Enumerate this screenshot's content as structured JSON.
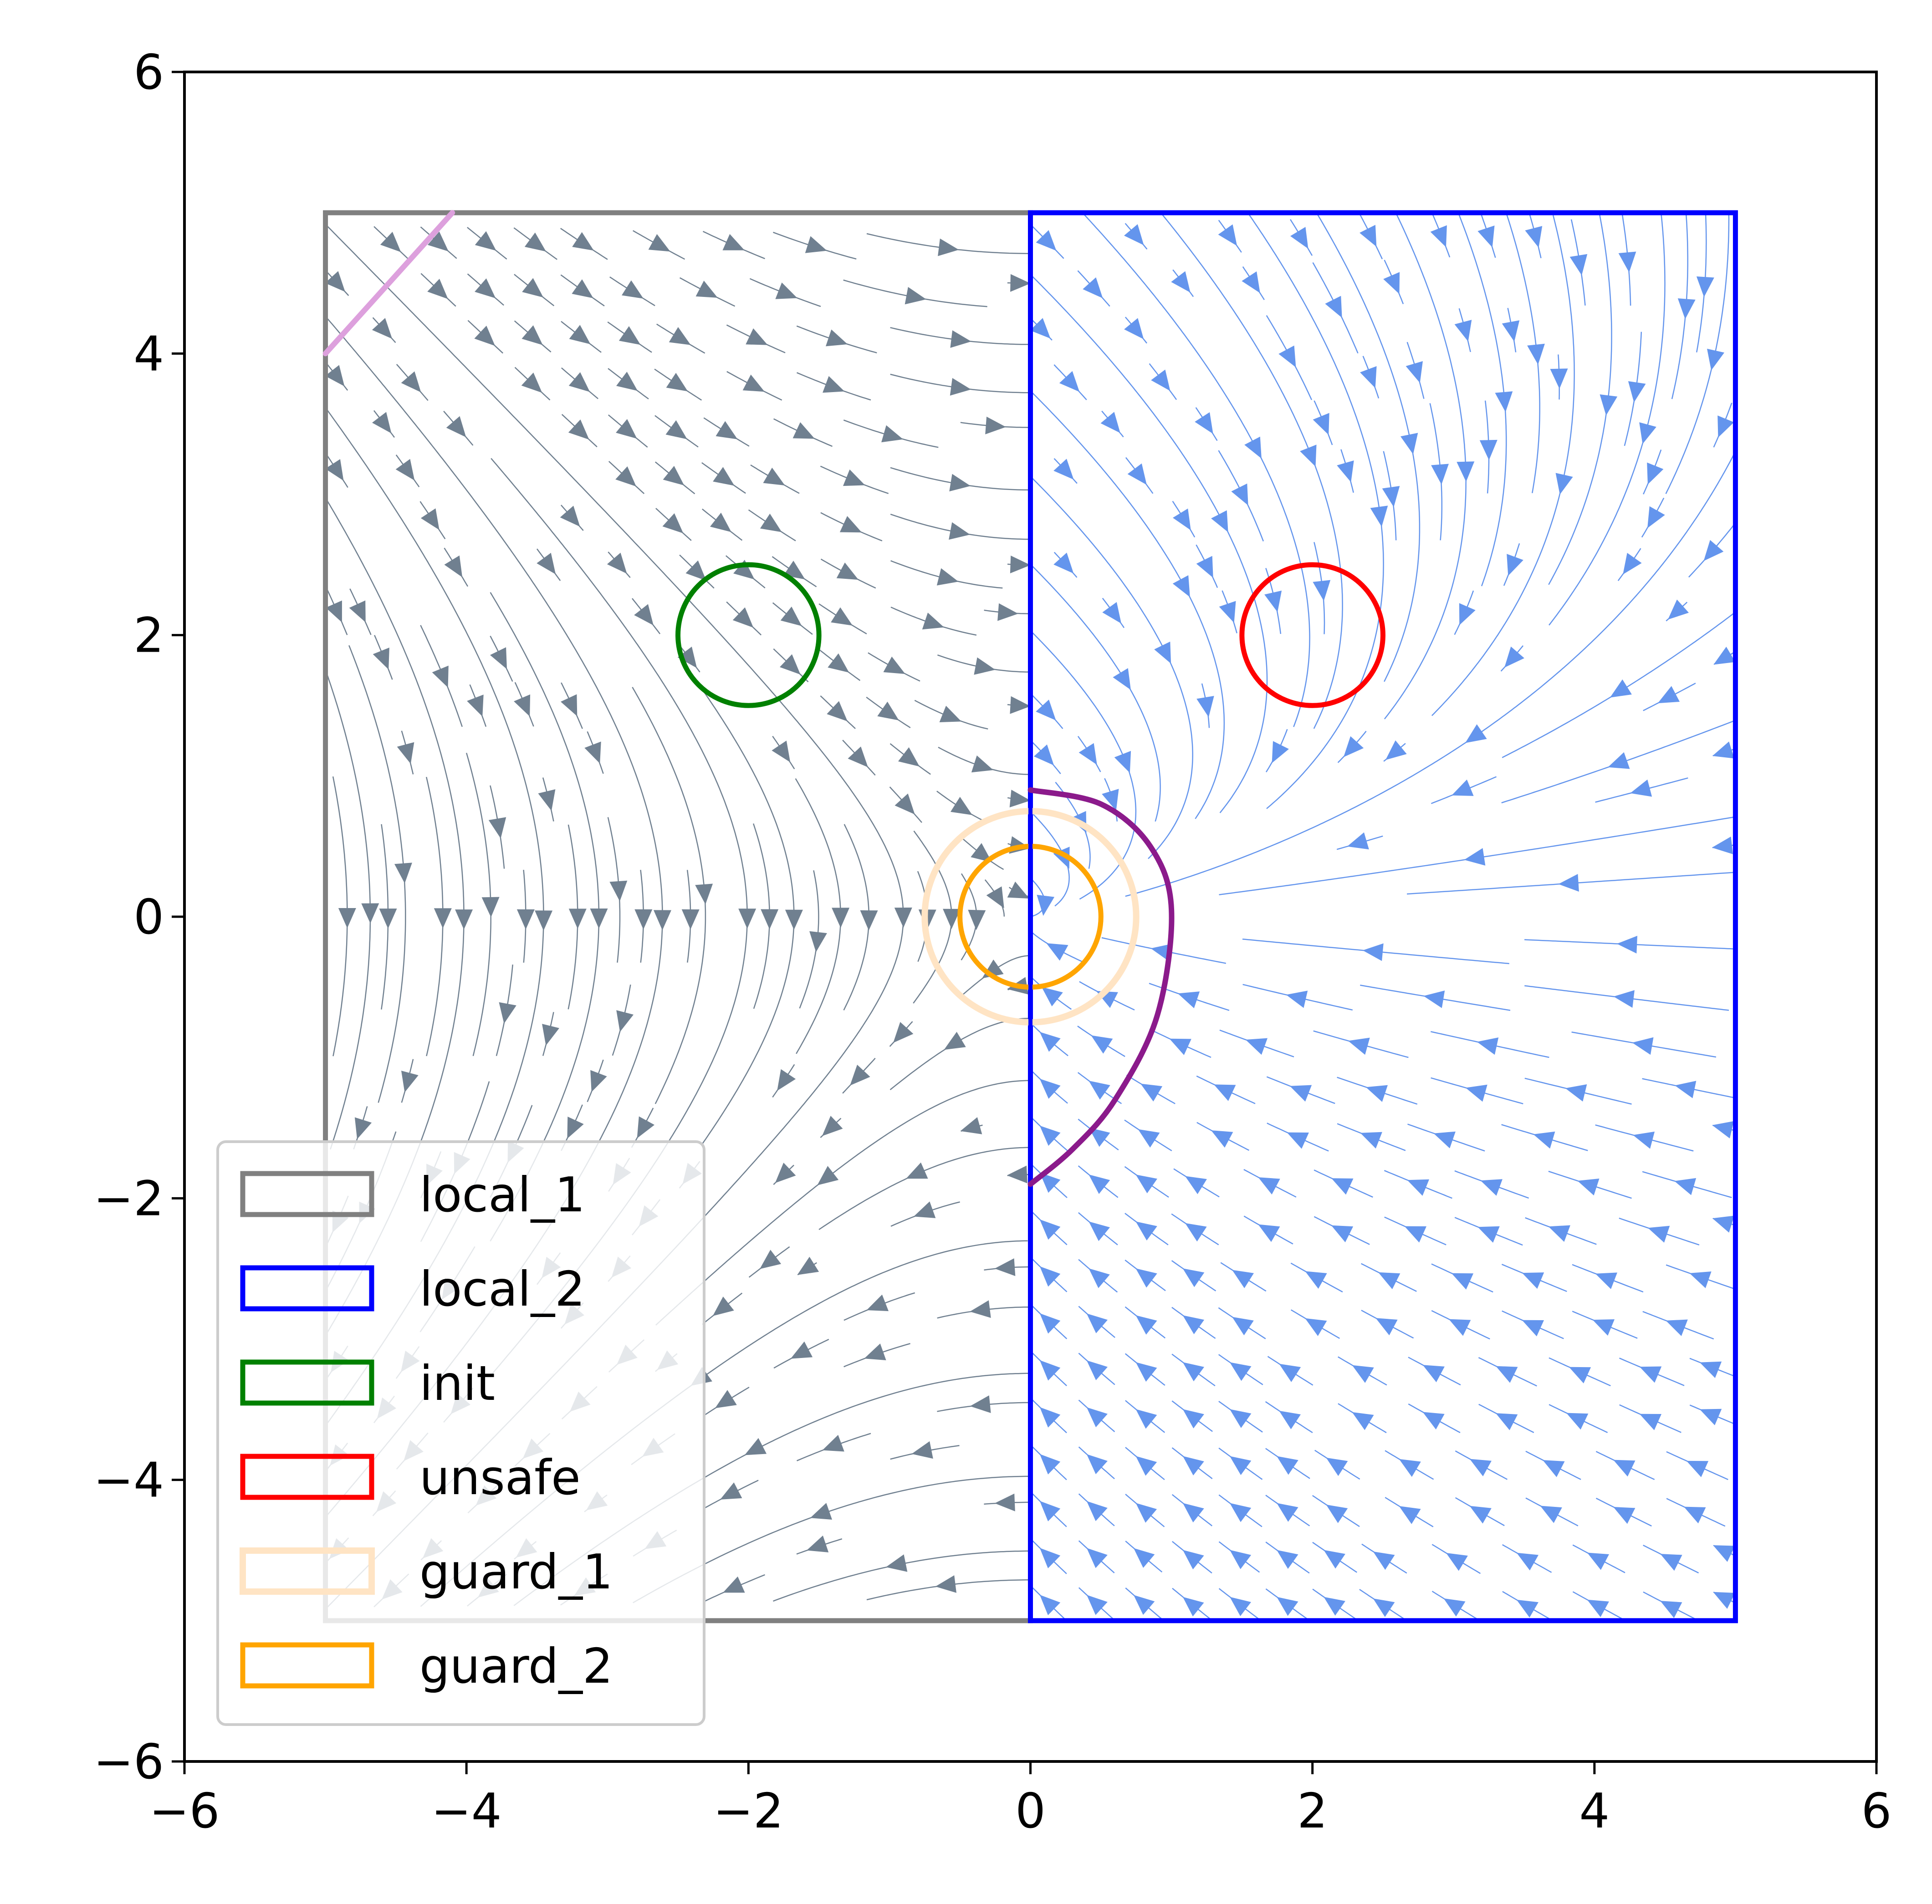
{
  "chart_data": {
    "type": "streamplot",
    "title": "",
    "xlabel": "",
    "ylabel": "",
    "xlim": [
      -6,
      6
    ],
    "ylim": [
      -6,
      6
    ],
    "xticks": [
      -6,
      -4,
      -2,
      0,
      2,
      4,
      6
    ],
    "yticks": [
      -6,
      -4,
      -2,
      0,
      2,
      4,
      6
    ],
    "xtick_labels": [
      "−6",
      "−4",
      "−2",
      "0",
      "2",
      "4",
      "6"
    ],
    "ytick_labels": [
      "−6",
      "−4",
      "−2",
      "0",
      "2",
      "4",
      "6"
    ],
    "grid": false,
    "legend_position": "lower-left",
    "regions": [
      {
        "name": "local_1",
        "shape": "rect",
        "x": [
          -5,
          0
        ],
        "y": [
          -5,
          5
        ],
        "color": "#808080"
      },
      {
        "name": "local_2",
        "shape": "rect",
        "x": [
          0,
          5
        ],
        "y": [
          -5,
          5
        ],
        "color": "#0000ff"
      },
      {
        "name": "init",
        "shape": "circle",
        "center": [
          -2,
          2
        ],
        "radius": 0.5,
        "color": "#008000"
      },
      {
        "name": "unsafe",
        "shape": "circle",
        "center": [
          2,
          2
        ],
        "radius": 0.5,
        "color": "#ff0000"
      },
      {
        "name": "guard_1",
        "shape": "circle",
        "center": [
          0,
          0
        ],
        "radius": 0.75,
        "color": "#ffe4c4"
      },
      {
        "name": "guard_2",
        "shape": "circle",
        "center": [
          0,
          0
        ],
        "radius": 0.5,
        "color": "#ffa500"
      }
    ],
    "stream_fields": [
      {
        "region": "local_1",
        "field": "dx = y, dy = x",
        "color": "#708090"
      },
      {
        "region": "local_2",
        "field": "dx = -x + y, dy = -y",
        "color": "#6495ed"
      }
    ],
    "trajectories": [
      {
        "points": [
          [
            -5,
            4
          ],
          [
            -4.1,
            5
          ]
        ],
        "color": "#dda0dd"
      },
      {
        "points": [
          [
            0,
            0.9
          ],
          [
            0.5,
            0.8
          ],
          [
            0.85,
            0.5
          ],
          [
            1.0,
            0.05
          ],
          [
            0.9,
            -0.7
          ],
          [
            0.6,
            -1.3
          ],
          [
            0.3,
            -1.65
          ],
          [
            0,
            -1.9
          ]
        ],
        "color": "#8b1a8b"
      }
    ]
  }
}
